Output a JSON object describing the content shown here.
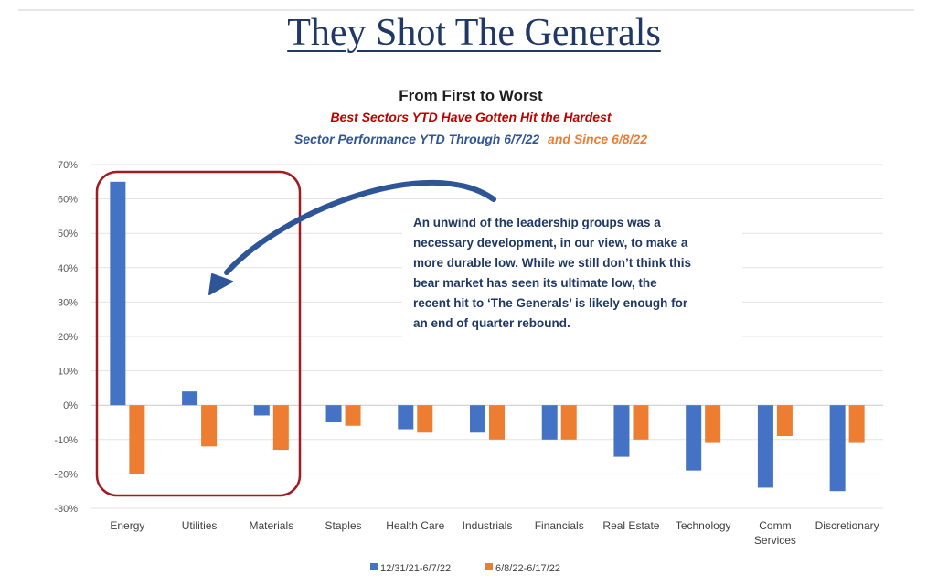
{
  "slide_title": "They Shot The Generals",
  "colors": {
    "series_1": "#4472c4",
    "series_2": "#ed7d31",
    "title_dark": "#1f1f1f",
    "subtitle_red": "#c00000",
    "subtitle_blue": "#2f5597",
    "highlight_box": "#a01c22",
    "arrow": "#2e5597",
    "slide_title": "#1f3864"
  },
  "annotation": {
    "lines": [
      "An unwind of the leadership groups was a",
      "necessary development, in our view, to make a",
      "more durable low. While we still don’t think this",
      "bear market has seen its ultimate low, the",
      "recent hit to ‘The Generals’ is likely enough for",
      "an end of quarter rebound."
    ]
  },
  "chart_data": {
    "type": "bar",
    "title": "From First to Worst",
    "subtitle": "Best Sectors YTD Have Gotten Hit the Hardest",
    "subtitle2_part1": "Sector Performance YTD Through 6/7/22",
    "subtitle2_part2": "and Since 6/8/22",
    "categories": [
      [
        "Energy"
      ],
      [
        "Utilities"
      ],
      [
        "Materials"
      ],
      [
        "Staples"
      ],
      [
        "Health Care"
      ],
      [
        "Industrials"
      ],
      [
        "Financials"
      ],
      [
        "Real Estate"
      ],
      [
        "Technology"
      ],
      [
        "Comm",
        "Services"
      ],
      [
        "Discretionary"
      ]
    ],
    "series": [
      {
        "name": "12/31/21-6/7/22",
        "color": "#4472c4",
        "values": [
          65,
          4,
          -3,
          -5,
          -7,
          -8,
          -10,
          -15,
          -19,
          -24,
          -25
        ]
      },
      {
        "name": "6/8/22-6/17/22",
        "color": "#ed7d31",
        "values": [
          -20,
          -12,
          -13,
          -6,
          -8,
          -10,
          -10,
          -10,
          -11,
          -9,
          -11
        ]
      }
    ],
    "y_ticks": [
      "70%",
      "60%",
      "50%",
      "40%",
      "30%",
      "20%",
      "10%",
      "0%",
      "-10%",
      "-20%",
      "-30%"
    ],
    "ylim": [
      -30,
      70
    ],
    "grid": true,
    "legend_position": "bottom"
  }
}
